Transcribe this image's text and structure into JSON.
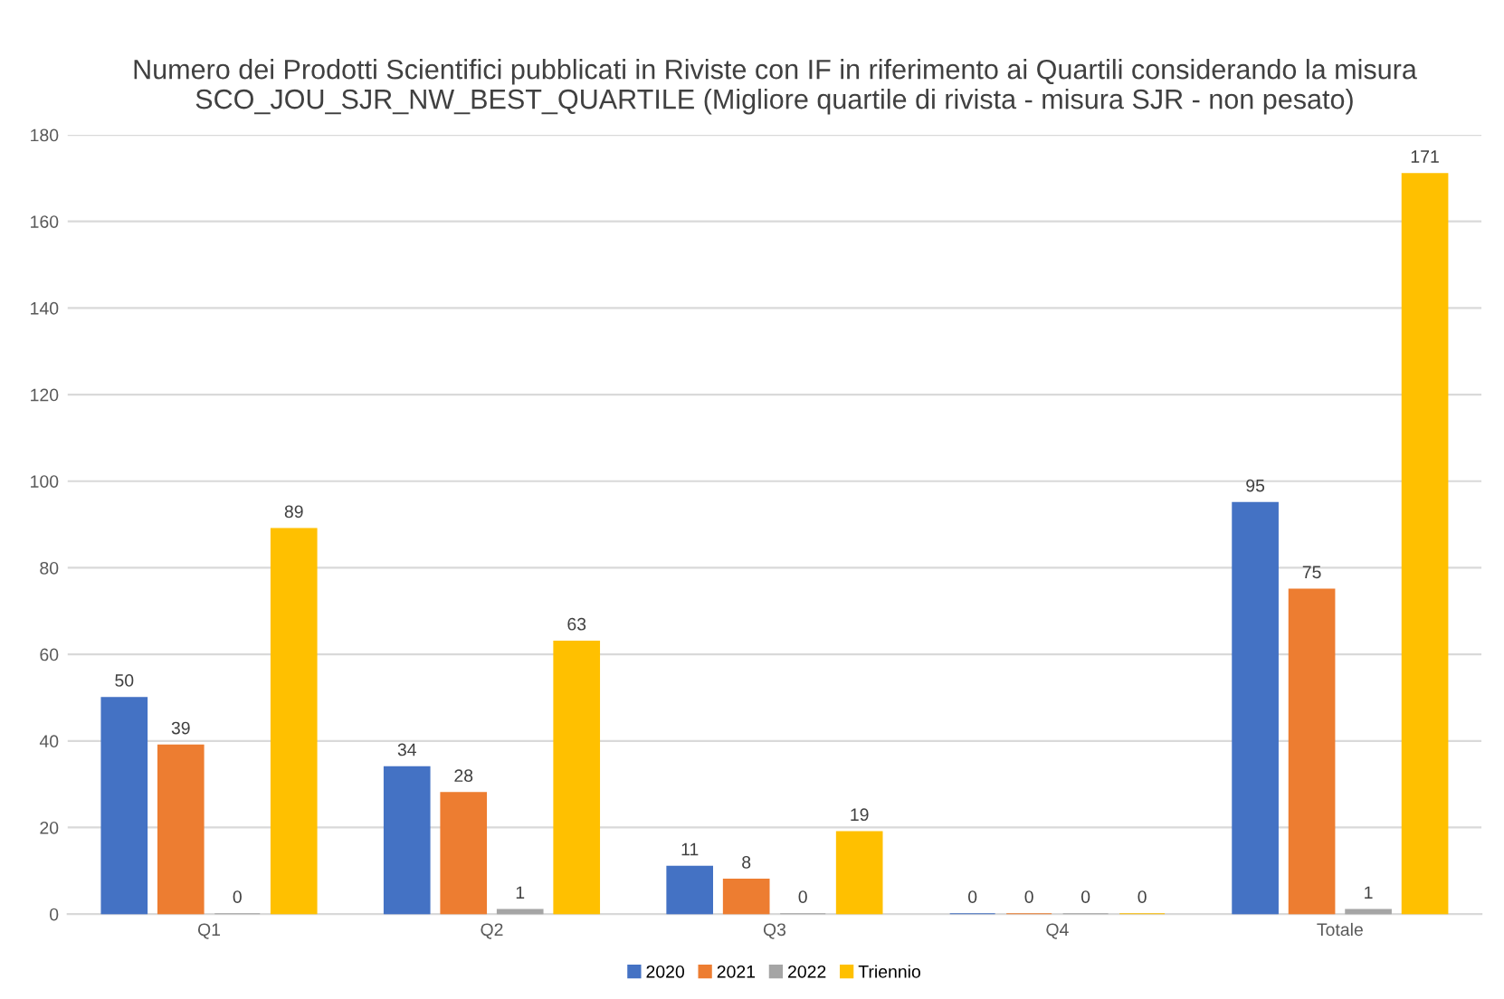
{
  "chart_data": {
    "type": "bar",
    "title": "Numero dei Prodotti Scientifici pubblicati in Riviste con IF in riferimento ai Quartili considerando la misura SCO_JOU_SJR_NW_BEST_QUARTILE (Migliore quartile di rivista - misura SJR - non pesato)",
    "categories": [
      "Q1",
      "Q2",
      "Q3",
      "Q4",
      "Totale"
    ],
    "series": [
      {
        "name": "2020",
        "color": "#4472c4",
        "values": [
          50,
          34,
          11,
          0,
          95
        ]
      },
      {
        "name": "2021",
        "color": "#ed7d31",
        "values": [
          39,
          28,
          8,
          0,
          75
        ]
      },
      {
        "name": "2022",
        "color": "#a5a5a5",
        "values": [
          0,
          1,
          0,
          0,
          1
        ]
      },
      {
        "name": "Triennio",
        "color": "#ffc000",
        "values": [
          89,
          63,
          19,
          0,
          171
        ]
      }
    ],
    "ylim": [
      0,
      180
    ],
    "yticks": [
      0,
      20,
      40,
      60,
      80,
      100,
      120,
      140,
      160,
      180
    ],
    "grid": "y",
    "legend": "bottom",
    "data_labels": true
  }
}
